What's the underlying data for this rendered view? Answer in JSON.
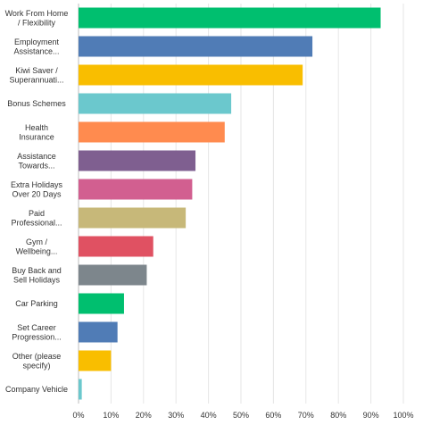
{
  "chart_data": {
    "type": "bar",
    "orientation": "horizontal",
    "categories": [
      [
        "Work From Home",
        "/ Flexibility"
      ],
      [
        "Employment",
        "Assistance..."
      ],
      [
        "Kiwi Saver /",
        "Superannuati..."
      ],
      [
        "Bonus Schemes"
      ],
      [
        "Health",
        "Insurance"
      ],
      [
        "Assistance",
        "Towards..."
      ],
      [
        "Extra Holidays",
        "Over 20 Days"
      ],
      [
        "Paid",
        "Professional..."
      ],
      [
        "Gym /",
        "Wellbeing..."
      ],
      [
        "Buy Back and",
        "Sell Holidays"
      ],
      [
        "Car Parking"
      ],
      [
        "Set Career",
        "Progression..."
      ],
      [
        "Other (please",
        "specify)"
      ],
      [
        "Company Vehicle"
      ]
    ],
    "values": [
      93,
      72,
      69,
      47,
      45,
      36,
      35,
      33,
      23,
      21,
      14,
      12,
      10,
      1
    ],
    "colors": [
      "#00bf6f",
      "#507cb6",
      "#f9be00",
      "#6bc8cd",
      "#ff8b4f",
      "#7f5f90",
      "#d25f90",
      "#c7b879",
      "#e05162",
      "#7d868c",
      "#00bf6f",
      "#507cb6",
      "#f9be00",
      "#6bc8cd"
    ],
    "x_ticks": [
      "0%",
      "10%",
      "20%",
      "30%",
      "40%",
      "50%",
      "60%",
      "70%",
      "80%",
      "90%",
      "100%"
    ],
    "xlim": [
      0,
      100
    ],
    "grid": true,
    "title": "",
    "xlabel": "",
    "ylabel": ""
  }
}
